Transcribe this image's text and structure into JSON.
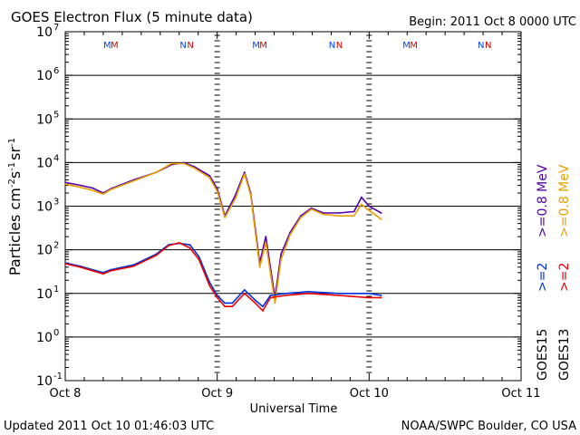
{
  "chart_data": {
    "type": "line",
    "title": "GOES Electron Flux (5 minute data)",
    "begin_label": "Begin: 2011 Oct 8 0000 UTC",
    "xlabel": "Universal Time",
    "ylabel_main": "Particles cm",
    "ylabel_exp1": "-2",
    "ylabel_s": "s",
    "ylabel_exp2": "-1",
    "ylabel_sr": "sr",
    "ylabel_exp3": "-1",
    "footer_left": "Updated 2011 Oct 10 01:46:03 UTC",
    "footer_right": "NOAA/SWPC Boulder, CO USA",
    "x_ticks": [
      {
        "day": 0,
        "label": "Oct 8"
      },
      {
        "day": 1,
        "label": "Oct 9"
      },
      {
        "day": 2,
        "label": "Oct 10"
      },
      {
        "day": 3,
        "label": "Oct 11"
      }
    ],
    "xlim": [
      0,
      3
    ],
    "ylim_log10": [
      -1,
      7
    ],
    "y_ticks": [
      {
        "exp": 7,
        "label": "10",
        "sup": "7"
      },
      {
        "exp": 6,
        "label": "10",
        "sup": "6"
      },
      {
        "exp": 5,
        "label": "10",
        "sup": "5"
      },
      {
        "exp": 4,
        "label": "10",
        "sup": "4"
      },
      {
        "exp": 3,
        "label": "10",
        "sup": "3"
      },
      {
        "exp": 2,
        "label": "10",
        "sup": "2"
      },
      {
        "exp": 1,
        "label": "10",
        "sup": "1"
      },
      {
        "exp": 0,
        "label": "10",
        "sup": "0"
      },
      {
        "exp": -1,
        "label": "10",
        "sup": "-1"
      }
    ],
    "threshold_line": {
      "value": 1000,
      "style": "dashed"
    },
    "markers": [
      {
        "day": 0.3,
        "text": "MM",
        "color1": "#0044ff",
        "color2": "#dd0000"
      },
      {
        "day": 0.8,
        "text": "NN",
        "color1": "#0044ff",
        "color2": "#dd0000"
      },
      {
        "day": 1.28,
        "text": "MM",
        "color1": "#0044ff",
        "color2": "#dd0000"
      },
      {
        "day": 1.78,
        "text": "NN",
        "color1": "#0044ff",
        "color2": "#dd0000"
      },
      {
        "day": 2.27,
        "text": "MM",
        "color1": "#0044ff",
        "color2": "#dd0000"
      },
      {
        "day": 2.76,
        "text": "NN",
        "color1": "#0044ff",
        "color2": "#dd0000"
      }
    ],
    "eclipse_marks_days": [
      1.0,
      2.0
    ],
    "legend": [
      {
        "label": ">=0.8 MeV",
        "color": "#e8a000",
        "group": "GOES13"
      },
      {
        "label": ">=0.8 MeV",
        "color": "#5500aa",
        "group": "GOES15"
      },
      {
        "label": ">=2",
        "color": "#ee0000",
        "group": "GOES13"
      },
      {
        "label": ">=2",
        "color": "#0033dd",
        "group": "GOES15"
      }
    ],
    "legend_groups": [
      "GOES15",
      "GOES13"
    ],
    "series": [
      {
        "name": "GOES15 >=0.8 MeV",
        "color": "#5500aa",
        "x": [
          0.0,
          0.1,
          0.18,
          0.25,
          0.3,
          0.45,
          0.6,
          0.7,
          0.78,
          0.85,
          0.95,
          1.0,
          1.05,
          1.12,
          1.18,
          1.22,
          1.28,
          1.32,
          1.38,
          1.42,
          1.48,
          1.55,
          1.62,
          1.7,
          1.8,
          1.9,
          1.95,
          2.0,
          2.05,
          2.08
        ],
        "y": [
          3500,
          3000,
          2600,
          2000,
          2500,
          4000,
          6000,
          9000,
          10000,
          8000,
          5000,
          2500,
          600,
          1800,
          6000,
          2000,
          50,
          200,
          8,
          80,
          250,
          600,
          900,
          700,
          700,
          750,
          1600,
          1000,
          800,
          700
        ]
      },
      {
        "name": "GOES13 >=0.8 MeV",
        "color": "#e8a000",
        "x": [
          0.0,
          0.1,
          0.18,
          0.25,
          0.3,
          0.45,
          0.6,
          0.7,
          0.78,
          0.85,
          0.95,
          1.0,
          1.05,
          1.12,
          1.18,
          1.22,
          1.28,
          1.32,
          1.38,
          1.42,
          1.48,
          1.55,
          1.62,
          1.7,
          1.8,
          1.9,
          1.95,
          2.0,
          2.05,
          2.08
        ],
        "y": [
          3200,
          2700,
          2300,
          1900,
          2400,
          3800,
          6000,
          9500,
          9500,
          7500,
          4500,
          2200,
          550,
          1500,
          5500,
          1800,
          40,
          150,
          6,
          60,
          220,
          550,
          850,
          650,
          600,
          600,
          1100,
          800,
          600,
          500
        ]
      },
      {
        "name": "GOES15 >=2 MeV",
        "color": "#0033dd",
        "x": [
          0.0,
          0.1,
          0.18,
          0.25,
          0.3,
          0.45,
          0.6,
          0.68,
          0.75,
          0.82,
          0.88,
          0.95,
          1.0,
          1.05,
          1.1,
          1.18,
          1.25,
          1.3,
          1.35,
          1.45,
          1.6,
          1.8,
          2.0,
          2.08
        ],
        "y": [
          50,
          42,
          35,
          30,
          35,
          45,
          80,
          130,
          140,
          130,
          70,
          18,
          9,
          6,
          6,
          12,
          7,
          5,
          9,
          10,
          11,
          10,
          10,
          9
        ]
      },
      {
        "name": "GOES13 >=2 MeV",
        "color": "#ee0000",
        "x": [
          0.0,
          0.1,
          0.18,
          0.25,
          0.3,
          0.45,
          0.6,
          0.68,
          0.75,
          0.82,
          0.88,
          0.95,
          1.0,
          1.05,
          1.1,
          1.18,
          1.25,
          1.3,
          1.35,
          1.45,
          1.6,
          1.8,
          2.0,
          2.08
        ],
        "y": [
          48,
          40,
          33,
          28,
          33,
          42,
          75,
          125,
          145,
          110,
          60,
          15,
          8,
          5,
          5,
          10,
          6,
          4,
          8,
          9,
          10,
          9,
          8,
          8
        ]
      }
    ]
  }
}
